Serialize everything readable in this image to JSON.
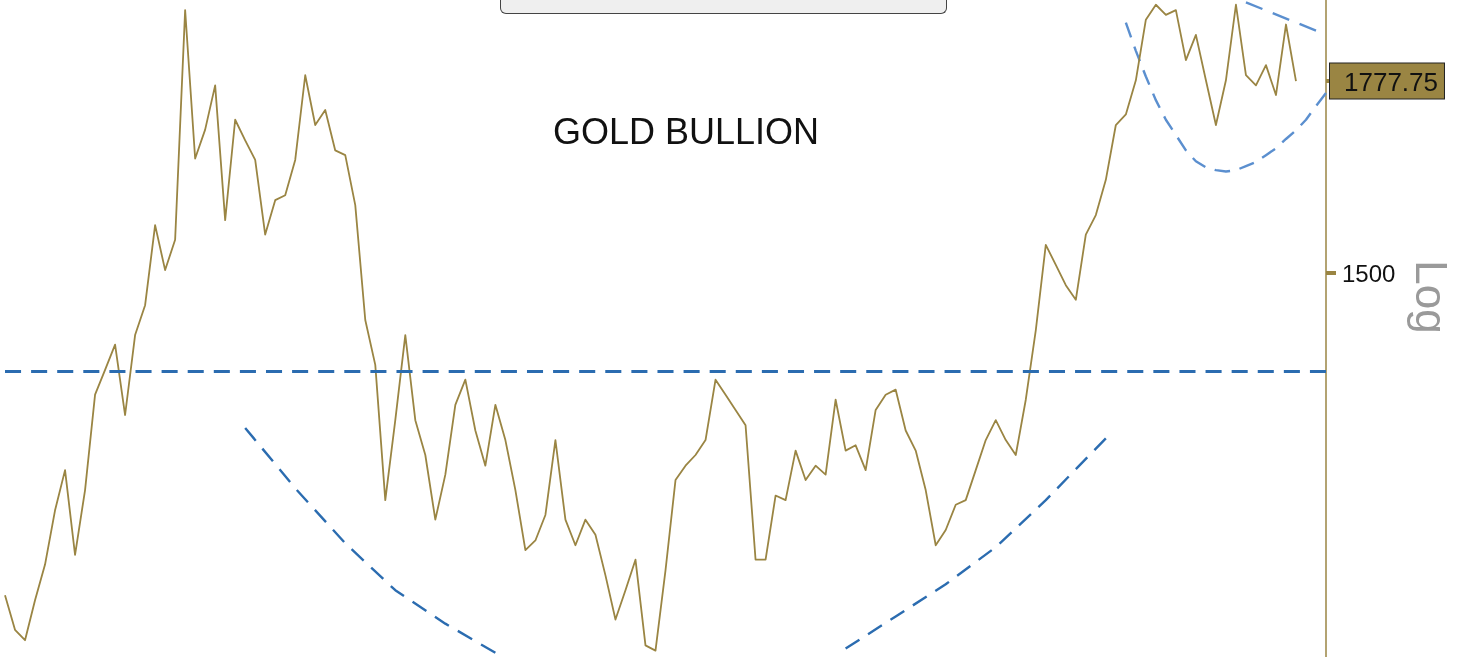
{
  "chart_data": {
    "type": "line",
    "title": "GOLD BULLION",
    "ylabel": "Log",
    "categories": [
      null,
      null,
      null,
      null,
      null,
      null,
      null,
      null,
      null,
      null,
      null,
      null,
      null,
      null,
      null,
      null,
      null,
      null,
      null,
      null,
      null,
      null,
      null,
      null,
      null,
      null,
      null,
      null,
      null,
      null,
      null,
      null,
      null,
      null,
      null,
      null,
      null,
      null,
      null,
      null,
      null,
      null,
      null,
      null,
      null,
      null,
      null,
      null,
      null,
      null,
      null,
      null,
      null,
      null,
      null,
      null,
      null,
      null,
      null,
      null,
      null,
      null,
      null,
      null,
      null,
      null,
      null,
      null,
      null,
      null,
      null,
      null,
      null,
      null,
      null,
      null,
      null,
      null,
      null,
      null,
      null,
      null,
      null,
      null,
      null,
      null,
      null,
      null,
      null,
      null,
      null,
      null,
      null,
      null,
      null,
      null,
      null,
      null,
      null,
      null,
      null,
      null,
      null,
      null,
      null,
      null,
      null,
      null,
      null,
      null,
      null,
      null,
      null,
      null,
      null,
      null,
      null,
      null,
      null,
      null,
      null,
      null,
      null,
      null,
      null,
      null,
      null,
      null,
      null,
      null,
      null,
      null,
      null
    ],
    "series": [
      {
        "color": "#9a8543",
        "line_style": "solid",
        "values": [
          1128,
          1094,
          1084,
          1123,
          1159,
          1216,
          1260,
          1169,
          1238,
          1347,
          1377,
          1408,
          1323,
          1420,
          1458,
          1565,
          1504,
          1545,
          1893,
          1660,
          1703,
          1771,
          1572,
          1718,
          1687,
          1658,
          1552,
          1600,
          1607,
          1658,
          1787,
          1710,
          1733,
          1672,
          1665,
          1593,
          1439,
          1383,
          1227,
          1317,
          1420,
          1317,
          1277,
          1206,
          1255,
          1335,
          1365,
          1305,
          1265,
          1335,
          1294,
          1238,
          1174,
          1184,
          1211,
          1294,
          1206,
          1179,
          1206,
          1190,
          1148,
          1104,
          1133,
          1164,
          1079,
          1074,
          1153,
          1249,
          1265,
          1277,
          1294,
          1365,
          1347,
          1329,
          1311,
          1164,
          1164,
          1232,
          1227,
          1282,
          1249,
          1265,
          1255,
          1341,
          1282,
          1288,
          1260,
          1329,
          1347,
          1353,
          1305,
          1282,
          1238,
          1179,
          1195,
          1222,
          1227,
          1260,
          1294,
          1317,
          1294,
          1277,
          1341,
          1426,
          1538,
          1511,
          1484,
          1465,
          1552,
          1579,
          1629,
          1710,
          1726,
          1779,
          1877,
          1902,
          1885,
          1893,
          1811,
          1852,
          1779,
          1710,
          1779,
          1902,
          1787,
          1771,
          1803,
          1756,
          1869,
          1777.75,
          null,
          null,
          null
        ]
      },
      {
        "color": "#2b6cb0",
        "line_style": "dashed",
        "values": [
          null,
          null,
          null,
          null,
          null,
          null,
          null,
          null,
          null,
          null,
          null,
          null,
          null,
          null,
          null,
          null,
          null,
          null,
          null,
          null,
          null,
          null,
          null,
          null,
          1308,
          null,
          null,
          null,
          null,
          1240,
          null,
          null,
          null,
          null,
          1181,
          null,
          null,
          null,
          null,
          1133,
          null,
          null,
          null,
          null,
          1100,
          null,
          null,
          null,
          null,
          1072,
          null,
          null,
          null,
          null,
          null,
          null,
          null,
          null,
          null,
          null,
          null,
          null,
          null,
          null,
          null,
          null,
          null,
          null,
          null,
          null,
          null,
          null,
          null,
          null,
          null,
          null,
          null,
          null,
          null,
          null,
          null,
          null,
          null,
          null,
          null,
          null,
          null,
          null,
          null,
          null,
          null,
          null,
          null,
          null,
          null,
          null,
          null,
          null,
          null,
          null,
          null,
          null,
          null,
          null,
          null,
          null,
          null,
          null,
          null,
          null,
          null,
          null,
          null,
          null,
          null,
          null,
          null,
          null,
          null,
          null,
          null,
          null,
          null,
          null,
          null,
          null,
          null,
          null,
          null,
          null,
          null,
          null,
          null
        ]
      },
      {
        "color": "#2b6cb0",
        "line_style": "dashed",
        "values": [
          null,
          null,
          null,
          null,
          null,
          null,
          null,
          null,
          null,
          null,
          null,
          null,
          null,
          null,
          null,
          null,
          null,
          null,
          null,
          null,
          null,
          null,
          null,
          null,
          null,
          null,
          null,
          null,
          null,
          null,
          null,
          null,
          null,
          null,
          null,
          null,
          null,
          null,
          null,
          null,
          null,
          null,
          null,
          null,
          null,
          null,
          null,
          null,
          null,
          null,
          null,
          null,
          null,
          null,
          null,
          null,
          null,
          null,
          null,
          null,
          null,
          null,
          null,
          null,
          null,
          null,
          null,
          null,
          null,
          null,
          null,
          null,
          null,
          null,
          null,
          null,
          null,
          null,
          null,
          null,
          null,
          null,
          null,
          null,
          1076,
          null,
          null,
          null,
          null,
          1107,
          null,
          null,
          null,
          null,
          1139,
          null,
          null,
          null,
          null,
          1177,
          null,
          null,
          null,
          null,
          1227,
          null,
          null,
          null,
          null,
          null,
          1296,
          null,
          null,
          null,
          null,
          null,
          null,
          null,
          null,
          null,
          null,
          null,
          null,
          null,
          null,
          null,
          null,
          null,
          null,
          null,
          null,
          null,
          null
        ]
      },
      {
        "color": "#5b8fcf",
        "line_style": "dashed",
        "values": [
          null,
          null,
          null,
          null,
          null,
          null,
          null,
          null,
          null,
          null,
          null,
          null,
          null,
          null,
          null,
          null,
          null,
          null,
          null,
          null,
          null,
          null,
          null,
          null,
          null,
          null,
          null,
          null,
          null,
          null,
          null,
          null,
          null,
          null,
          null,
          null,
          null,
          null,
          null,
          null,
          null,
          null,
          null,
          null,
          null,
          null,
          null,
          null,
          null,
          null,
          null,
          null,
          null,
          null,
          null,
          null,
          null,
          null,
          null,
          null,
          null,
          null,
          null,
          null,
          null,
          null,
          null,
          null,
          null,
          null,
          null,
          null,
          null,
          null,
          null,
          null,
          null,
          null,
          null,
          null,
          null,
          null,
          null,
          null,
          null,
          null,
          null,
          null,
          null,
          null,
          null,
          null,
          null,
          null,
          null,
          null,
          null,
          null,
          null,
          null,
          null,
          null,
          null,
          null,
          null,
          null,
          null,
          null,
          null,
          null,
          null,
          null,
          1872,
          1826,
          1785,
          1748,
          1718,
          1695,
          1672,
          1656,
          1647,
          1643,
          1641,
          1643,
          1649,
          1655,
          1665,
          1675,
          1689,
          1702,
          1718,
          1739,
          1759
        ]
      },
      {
        "color": "#5b8fcf",
        "line_style": "dashed",
        "values": [
          null,
          null,
          null,
          null,
          null,
          null,
          null,
          null,
          null,
          null,
          null,
          null,
          null,
          null,
          null,
          null,
          null,
          null,
          null,
          null,
          null,
          null,
          null,
          null,
          null,
          null,
          null,
          null,
          null,
          null,
          null,
          null,
          null,
          null,
          null,
          null,
          null,
          null,
          null,
          null,
          null,
          null,
          null,
          null,
          null,
          null,
          null,
          null,
          null,
          null,
          null,
          null,
          null,
          null,
          null,
          null,
          null,
          null,
          null,
          null,
          null,
          null,
          null,
          null,
          null,
          null,
          null,
          null,
          null,
          null,
          null,
          null,
          null,
          null,
          null,
          null,
          null,
          null,
          null,
          null,
          null,
          null,
          null,
          null,
          null,
          null,
          null,
          null,
          null,
          null,
          null,
          null,
          null,
          null,
          null,
          null,
          null,
          null,
          null,
          null,
          null,
          null,
          null,
          null,
          null,
          null,
          null,
          null,
          null,
          null,
          null,
          null,
          null,
          null,
          null,
          null,
          null,
          null,
          null,
          null,
          null,
          null,
          null,
          null,
          1906,
          null,
          null,
          null,
          null,
          null,
          null,
          1859,
          null
        ]
      }
    ],
    "ylim": [
      1068,
      1910
    ],
    "yticks": [
      1500,
      1777.75
    ],
    "log": "y",
    "ref_lines": [
      {
        "axis": "y",
        "value": 1375,
        "color": "#2b6cb0",
        "line_style": "dashed"
      }
    ],
    "grid": false,
    "legend": false,
    "tick_labels": "y"
  }
}
